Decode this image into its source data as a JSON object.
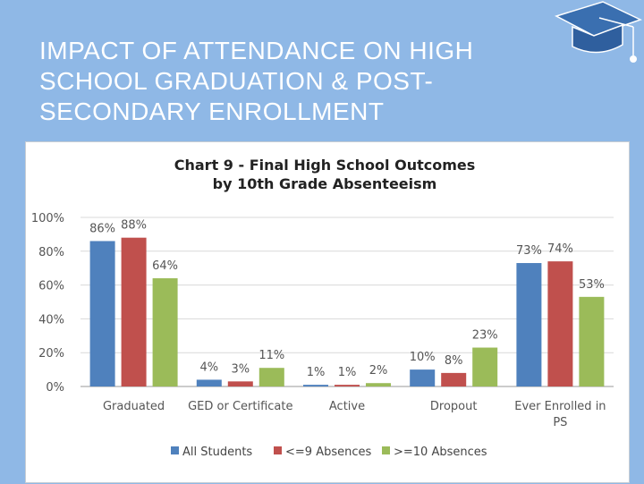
{
  "slide": {
    "title": "IMPACT OF ATTENDANCE ON HIGH\nSCHOOL GRADUATION & POST-\nSECONDARY ENROLLMENT",
    "icon": "graduation-cap-icon",
    "background_color": "#8fb8e6"
  },
  "chart_data": {
    "type": "bar",
    "title_lines": [
      "Chart 9 - Final High School Outcomes",
      "by 10th Grade Absenteeism"
    ],
    "categories": [
      [
        "Graduated"
      ],
      [
        "GED or Certificate"
      ],
      [
        "Active"
      ],
      [
        "Dropout"
      ],
      [
        "Ever Enrolled in",
        "PS"
      ]
    ],
    "series": [
      {
        "name": "All Students",
        "color": "#4f81bd",
        "values": [
          86,
          4,
          1,
          10,
          73
        ]
      },
      {
        "name": "<=9 Absences",
        "color": "#c0504d",
        "values": [
          88,
          3,
          1,
          8,
          74
        ]
      },
      {
        "name": ">=10 Absences",
        "color": "#9bbb59",
        "values": [
          64,
          11,
          2,
          23,
          53
        ]
      }
    ],
    "value_suffix": "%",
    "y_ticks": [
      "0%",
      "20%",
      "40%",
      "60%",
      "80%",
      "100%"
    ],
    "ylim": [
      0,
      100
    ],
    "grid": true,
    "legend": "bottom"
  }
}
